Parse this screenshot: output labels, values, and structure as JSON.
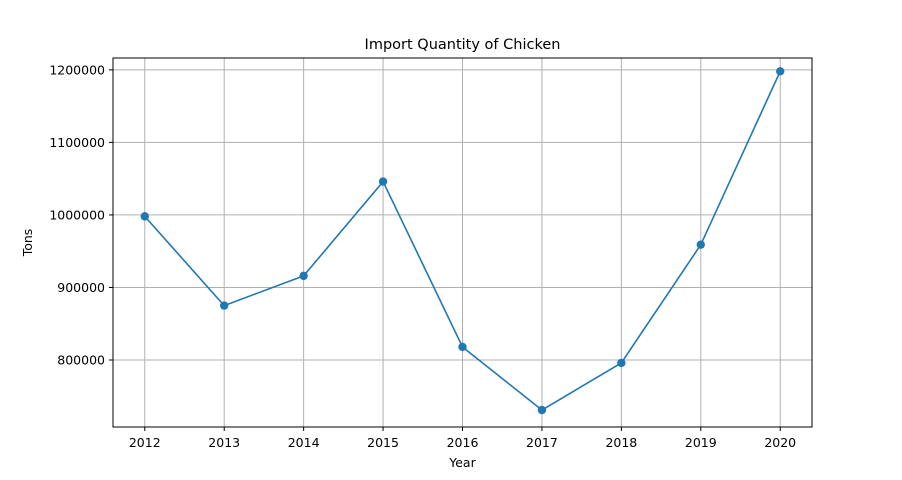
{
  "chart_data": {
    "type": "line",
    "title": "Import Quantity of Chicken",
    "xlabel": "Year",
    "ylabel": "Tons",
    "x": [
      2012,
      2013,
      2014,
      2015,
      2016,
      2017,
      2018,
      2019,
      2020
    ],
    "series": [
      {
        "values": [
          998000,
          875000,
          916000,
          1046000,
          818000,
          731000,
          796000,
          959000,
          1198000
        ],
        "color": "#1f77b4",
        "marker": "circle"
      }
    ],
    "xticks": [
      "2012",
      "2013",
      "2014",
      "2015",
      "2016",
      "2017",
      "2018",
      "2019",
      "2020"
    ],
    "yticks": [
      800000,
      900000,
      1000000,
      1100000,
      1200000
    ],
    "ytick_labels": [
      "800000",
      "900000",
      "1000000",
      "1100000",
      "1200000"
    ],
    "xlim": [
      2011.6,
      2020.4
    ],
    "ylim": [
      707650,
      1216350
    ],
    "grid": true,
    "legend": "none"
  }
}
